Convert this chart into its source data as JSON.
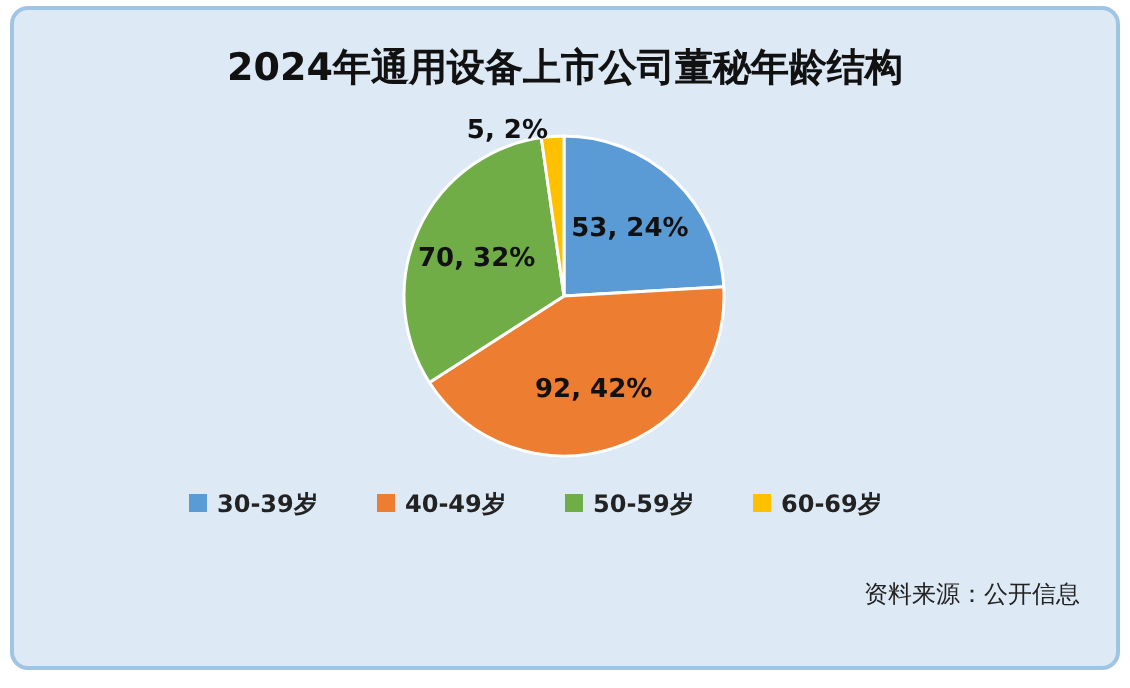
{
  "chart_data": {
    "type": "pie",
    "title": "2024年通用设备上市公司董秘年龄结构",
    "categories": [
      "30-39岁",
      "40-49岁",
      "50-59岁",
      "60-69岁"
    ],
    "values": [
      53,
      92,
      70,
      5
    ],
    "value_labels": [
      "53, 24%",
      "92, 42%",
      "70, 32%",
      "5, 2%"
    ],
    "colors": [
      "#5b9bd5",
      "#ed7d31",
      "#70ad47",
      "#ffc000"
    ],
    "legend": "bottom",
    "annotations": [
      "资料来源：公开信息"
    ]
  }
}
